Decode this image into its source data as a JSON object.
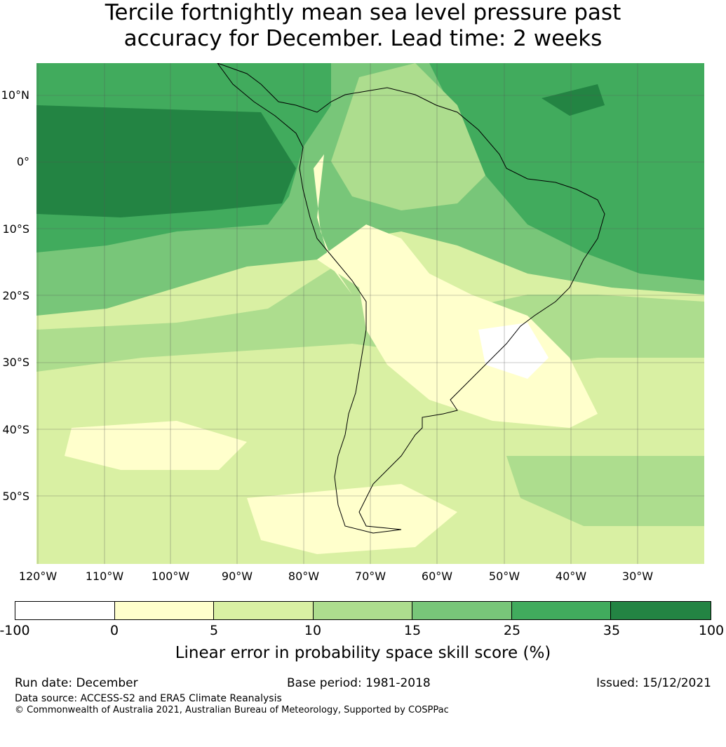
{
  "title": {
    "line1": "Tercile fortnightly mean sea level pressure past",
    "line2": "accuracy for December. Lead time: 2 weeks"
  },
  "map": {
    "lat_labels": [
      "10°N",
      "0°",
      "10°S",
      "20°S",
      "30°S",
      "40°S",
      "50°S"
    ],
    "lon_labels": [
      "120°W",
      "110°W",
      "100°W",
      "90°W",
      "80°W",
      "70°W",
      "60°W",
      "50°W",
      "40°W",
      "30°W"
    ]
  },
  "colorbar": {
    "ticks": [
      "-100",
      "0",
      "5",
      "10",
      "15",
      "25",
      "35",
      "100"
    ],
    "colors": [
      "#ffffff",
      "#ffffcc",
      "#d9f0a3",
      "#addd8e",
      "#78c679",
      "#41ab5d",
      "#238443"
    ],
    "label": "Linear error in probability space skill score (%)"
  },
  "footer": {
    "run_date": "Run date: December",
    "base_period": "Base period: 1981-2018",
    "issued": "Issued: 15/12/2021",
    "data_source": "Data source: ACCESS-S2 and ERA5 Climate Reanalysis",
    "copyright": "© Commonwealth of Australia 2021, Australian Bureau of Meteorology, Supported by COSPPac"
  }
}
